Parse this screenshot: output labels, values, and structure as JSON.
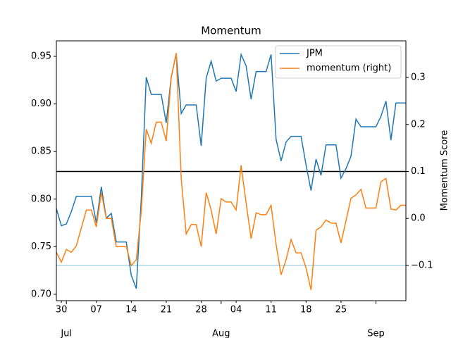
{
  "chart_data": {
    "type": "line",
    "title": "Momentum",
    "y2label": "Momentum Score",
    "x": [
      "06-29",
      "06-30",
      "07-01",
      "07-02",
      "07-03",
      "07-04",
      "07-05",
      "07-06",
      "07-07",
      "07-08",
      "07-09",
      "07-10",
      "07-11",
      "07-12",
      "07-13",
      "07-14",
      "07-15",
      "07-16",
      "07-17",
      "07-18",
      "07-19",
      "07-20",
      "07-21",
      "07-22",
      "07-23",
      "07-24",
      "07-25",
      "07-26",
      "07-27",
      "07-28",
      "07-29",
      "07-30",
      "07-31",
      "08-01",
      "08-02",
      "08-03",
      "08-04",
      "08-05",
      "08-06",
      "08-07",
      "08-08",
      "08-09",
      "08-10",
      "08-11",
      "08-12",
      "08-13",
      "08-14",
      "08-15",
      "08-16",
      "08-17",
      "08-18",
      "08-19",
      "08-20",
      "08-21",
      "08-22",
      "08-23",
      "08-24",
      "08-25",
      "08-26",
      "08-27",
      "08-28",
      "08-29",
      "08-30",
      "08-31",
      "09-01",
      "09-02",
      "09-03",
      "09-04",
      "09-05",
      "09-06",
      "09-07"
    ],
    "series": [
      {
        "name": "JPM",
        "color": "#1f77b4",
        "values": [
          0.79,
          0.772,
          0.774,
          0.787,
          0.803,
          0.803,
          0.803,
          0.803,
          0.775,
          0.813,
          0.78,
          0.785,
          0.755,
          0.755,
          0.755,
          0.72,
          0.706,
          0.8,
          0.928,
          0.91,
          0.91,
          0.91,
          0.88,
          0.928,
          0.953,
          0.89,
          0.899,
          0.899,
          0.899,
          0.856,
          0.927,
          0.945,
          0.924,
          0.927,
          0.927,
          0.927,
          0.913,
          0.952,
          0.94,
          0.905,
          0.934,
          0.934,
          0.934,
          0.952,
          0.863,
          0.84,
          0.86,
          0.866,
          0.866,
          0.866,
          0.836,
          0.809,
          0.842,
          0.825,
          0.857,
          0.857,
          0.857,
          0.822,
          0.832,
          0.845,
          0.884,
          0.876,
          0.876,
          0.876,
          0.876,
          0.887,
          0.903,
          0.862,
          0.901,
          0.901,
          0.901
        ]
      },
      {
        "name": "momentum (right)",
        "color": "#ff7f0e",
        "axis": "y2",
        "values": [
          -0.072,
          -0.093,
          -0.066,
          -0.072,
          -0.058,
          -0.02,
          0.018,
          0.018,
          -0.018,
          0.055,
          0.0,
          0.0,
          -0.06,
          -0.06,
          -0.06,
          -0.1,
          -0.088,
          0.015,
          0.19,
          0.16,
          0.205,
          0.205,
          0.165,
          0.3,
          0.352,
          0.085,
          -0.033,
          -0.013,
          -0.013,
          -0.06,
          0.055,
          0.018,
          -0.033,
          0.042,
          0.035,
          0.035,
          0.018,
          0.113,
          0.033,
          -0.043,
          0.012,
          0.008,
          0.008,
          0.028,
          -0.055,
          -0.12,
          -0.088,
          -0.045,
          -0.073,
          -0.073,
          -0.105,
          -0.152,
          -0.025,
          -0.018,
          -0.003,
          -0.01,
          -0.01,
          -0.052,
          -0.005,
          0.043,
          0.05,
          0.062,
          0.022,
          0.022,
          0.022,
          0.078,
          0.085,
          0.02,
          0.018,
          0.028,
          0.028
        ]
      }
    ],
    "hlines": [
      {
        "value": 0.1,
        "axis": "y2",
        "color": "#000000"
      },
      {
        "value": -0.1,
        "axis": "y2",
        "color": "#add8e6"
      }
    ],
    "xlim": [
      "06-29",
      "09-07"
    ],
    "xticks": [
      {
        "value": "06-30",
        "label": "30"
      },
      {
        "value": "07-07",
        "label": "07"
      },
      {
        "value": "07-14",
        "label": "14"
      },
      {
        "value": "07-21",
        "label": "21"
      },
      {
        "value": "07-28",
        "label": "28"
      },
      {
        "value": "08-04",
        "label": "04"
      },
      {
        "value": "08-11",
        "label": "11"
      },
      {
        "value": "08-18",
        "label": "18"
      },
      {
        "value": "08-25",
        "label": "25"
      }
    ],
    "xmonthticks": [
      {
        "value": "07-01",
        "label": "Jul"
      },
      {
        "value": "08-01",
        "label": "Aug"
      },
      {
        "value": "09-01",
        "label": "Sep"
      }
    ],
    "ylim": [
      0.6933,
      0.9663
    ],
    "yticks": [
      {
        "value": 0.7,
        "label": "0.70"
      },
      0.75,
      {
        "value": 0.8,
        "label": "0.80"
      },
      0.85,
      {
        "value": 0.9,
        "label": "0.90"
      },
      0.95
    ],
    "y2lim": [
      -0.175,
      0.378
    ],
    "y2ticks": [
      {
        "value": -0.1,
        "label": "−0.1"
      },
      {
        "value": 0,
        "label": "0.0"
      },
      0.1,
      0.2,
      0.3
    ],
    "legend": "upper right",
    "grid": false
  }
}
